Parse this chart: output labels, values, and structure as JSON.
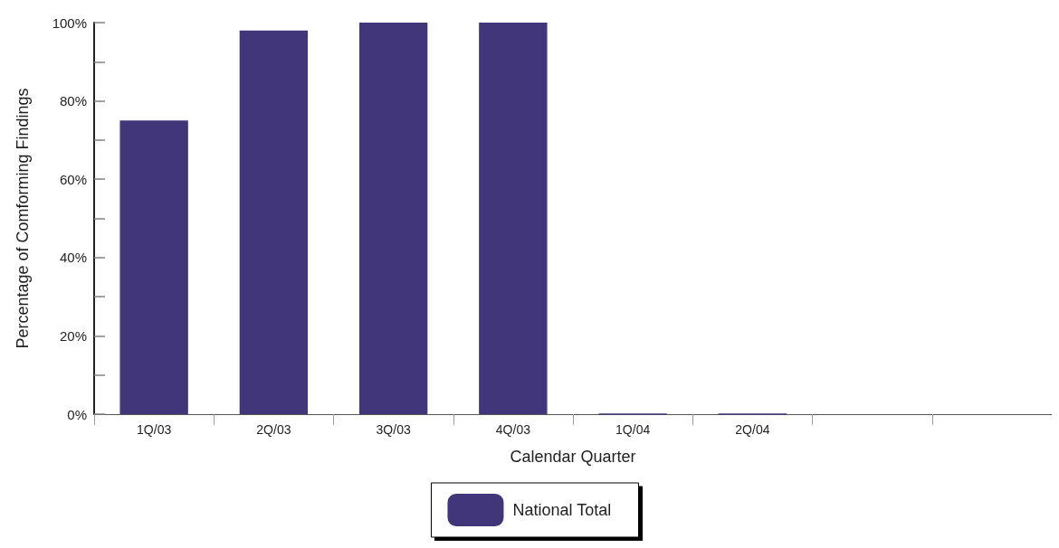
{
  "chart_data": {
    "type": "bar",
    "xlabel": "Calendar Quarter",
    "ylabel": "Percentage of Comforming Findings",
    "categories": [
      "1Q/03",
      "2Q/03",
      "3Q/03",
      "4Q/03",
      "1Q/04",
      "2Q/04",
      null,
      null
    ],
    "series": [
      {
        "name": "National Total",
        "color": "#42367a",
        "values": [
          75,
          98,
          100,
          100,
          0,
          0,
          null,
          null
        ]
      }
    ],
    "ylim": [
      0,
      100
    ],
    "yticks": [
      {
        "value": 0,
        "label": "0%"
      },
      {
        "value": 10,
        "label": null
      },
      {
        "value": 20,
        "label": "20%"
      },
      {
        "value": 30,
        "label": null
      },
      {
        "value": 40,
        "label": "40%"
      },
      {
        "value": 50,
        "label": null
      },
      {
        "value": 60,
        "label": "60%"
      },
      {
        "value": 70,
        "label": null
      },
      {
        "value": 80,
        "label": "80%"
      },
      {
        "value": 90,
        "label": null
      },
      {
        "value": 100,
        "label": "100%"
      }
    ],
    "grid": false,
    "legend": "bottom"
  }
}
